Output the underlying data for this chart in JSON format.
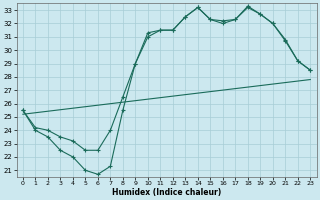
{
  "xlabel": "Humidex (Indice chaleur)",
  "background_color": "#cce8ef",
  "line_color": "#1a6b5a",
  "grid_color": "#a8cdd6",
  "xlim": [
    -0.5,
    23.5
  ],
  "ylim": [
    20.5,
    33.5
  ],
  "xticks": [
    0,
    1,
    2,
    3,
    4,
    5,
    6,
    7,
    8,
    9,
    10,
    11,
    12,
    13,
    14,
    15,
    16,
    17,
    18,
    19,
    20,
    21,
    22,
    23
  ],
  "yticks": [
    21,
    22,
    23,
    24,
    25,
    26,
    27,
    28,
    29,
    30,
    31,
    32,
    33
  ],
  "line1_x": [
    0,
    1,
    2,
    3,
    4,
    5,
    6,
    7,
    8,
    9,
    10,
    11,
    12,
    13,
    14,
    15,
    16,
    17,
    18,
    19,
    20,
    21,
    22,
    23
  ],
  "line1_y": [
    25.5,
    24.0,
    23.5,
    22.5,
    22.0,
    21.0,
    20.7,
    21.3,
    25.5,
    29.0,
    31.3,
    31.5,
    31.5,
    32.5,
    33.2,
    32.3,
    32.2,
    32.3,
    33.3,
    32.7,
    32.0,
    30.8,
    29.2,
    28.5
  ],
  "line2_x": [
    0,
    1,
    2,
    3,
    4,
    5,
    6,
    7,
    8,
    9,
    10,
    11,
    12,
    13,
    14,
    15,
    16,
    17,
    18,
    19,
    20,
    21,
    22,
    23
  ],
  "line2_y": [
    25.5,
    24.2,
    24.0,
    23.5,
    23.2,
    22.5,
    22.5,
    24.0,
    26.5,
    29.0,
    31.0,
    31.5,
    31.5,
    32.5,
    33.2,
    32.3,
    32.0,
    32.3,
    33.2,
    32.7,
    32.0,
    30.7,
    29.2,
    28.5
  ],
  "line3_x": [
    0,
    23
  ],
  "line3_y": [
    25.2,
    27.8
  ]
}
